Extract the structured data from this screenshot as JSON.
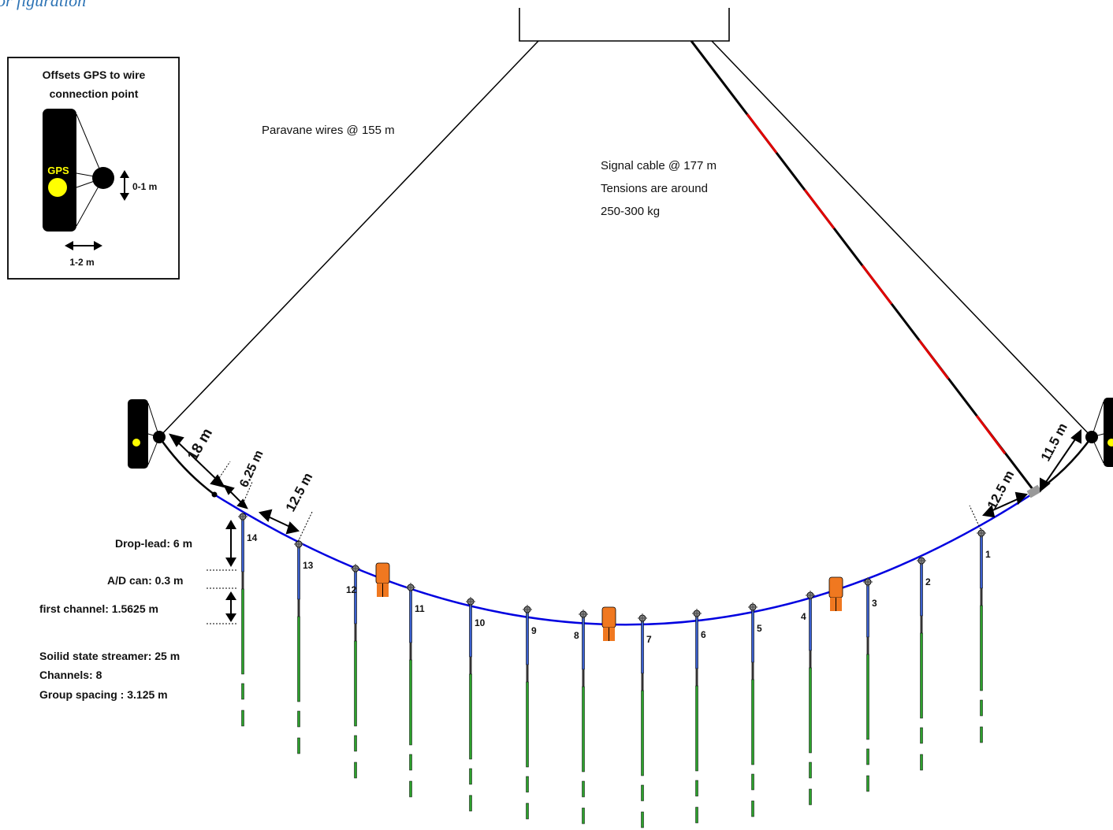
{
  "header_fragment": "or figuration",
  "inset": {
    "title_line1": "Offsets GPS to wire",
    "title_line2": "connection point",
    "gps_label": "GPS",
    "vertical_offset": "0-1 m",
    "horizontal_offset": "1-2 m"
  },
  "labels": {
    "paravane_wires": "Paravane wires @ 155 m",
    "signal_cable_line1": "Signal cable @ 177 m",
    "signal_cable_line2": "Tensions are around",
    "signal_cable_line3": "250-300 kg"
  },
  "dimensions": {
    "left_wire": "18 m",
    "left_gap": "6.25 m",
    "left_spacing": "12.5 m",
    "right_wire": "11.5 m",
    "right_spacing": "12.5 m"
  },
  "legend": {
    "drop_lead": "Drop-lead: 6 m",
    "ad_can": "A/D can: 0.3 m",
    "first_channel": "first channel: 1.5625 m",
    "streamer": "Soilid state streamer: 25 m",
    "channels": "Channels: 8",
    "group_spacing": "Group spacing : 3.125 m"
  },
  "streamers": [
    {
      "label": "14"
    },
    {
      "label": "13"
    },
    {
      "label": "12"
    },
    {
      "label": "11"
    },
    {
      "label": "10"
    },
    {
      "label": "9"
    },
    {
      "label": "8"
    },
    {
      "label": "7"
    },
    {
      "label": "6"
    },
    {
      "label": "5"
    },
    {
      "label": "4"
    },
    {
      "label": "3"
    },
    {
      "label": "2"
    },
    {
      "label": "1"
    }
  ],
  "colors": {
    "spread_cable": "#0000e0",
    "drop_lead": "#3a5fcd",
    "streamer": "#2ca02c",
    "ad_can": "#333333",
    "bird": "#f07820",
    "gps": "#ffff00",
    "signal_red": "#e00000",
    "connector": "#999999"
  }
}
